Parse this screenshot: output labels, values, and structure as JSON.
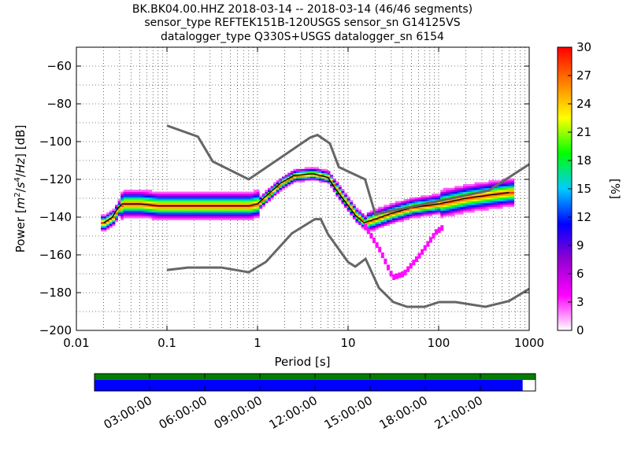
{
  "chart_data": {
    "type": "heatmap",
    "title_lines": [
      "BK.BK04.00.HHZ   2018-03-14 -- 2018-03-14  (46/46 segments)",
      "sensor_type REFTEK151B-120USGS sensor_sn G14125VS",
      "datalogger_type Q330S+USGS datalogger_sn 6154"
    ],
    "xlabel": "Period [s]",
    "ylabel": "Power [m²/s⁴/Hz] [dB]",
    "ylabel_parts": {
      "pre": "Power [",
      "m": "m",
      "two": "2",
      "sep1": "/",
      "s": "s",
      "four": "4",
      "sep2": "/",
      "hz": "Hz",
      "post": "] [dB]"
    },
    "x_scale": "log",
    "xlim": [
      0.01,
      1000
    ],
    "ylim": [
      -200,
      -50
    ],
    "x_ticks": [
      {
        "value": 0.01,
        "label": "0.01"
      },
      {
        "value": 0.1,
        "label": "0.1"
      },
      {
        "value": 1,
        "label": "1"
      },
      {
        "value": 10,
        "label": "10"
      },
      {
        "value": 100,
        "label": "100"
      },
      {
        "value": 1000,
        "label": "1000"
      }
    ],
    "y_ticks": [
      {
        "value": -60,
        "label": "−60"
      },
      {
        "value": -80,
        "label": "−80"
      },
      {
        "value": -100,
        "label": "−100"
      },
      {
        "value": -120,
        "label": "−120"
      },
      {
        "value": -140,
        "label": "−140"
      },
      {
        "value": -160,
        "label": "−160"
      },
      {
        "value": -180,
        "label": "−180"
      },
      {
        "value": -200,
        "label": "−200"
      }
    ],
    "grid": "dotted",
    "grid_periods": [
      0.02,
      0.03,
      0.04,
      0.05,
      0.06,
      0.07,
      0.08,
      0.09,
      0.1,
      0.2,
      0.3,
      0.4,
      0.5,
      0.6,
      0.7,
      0.8,
      0.9,
      1,
      2,
      3,
      4,
      5,
      6,
      7,
      8,
      9,
      10,
      20,
      30,
      40,
      50,
      60,
      70,
      80,
      90,
      100,
      200,
      300,
      400,
      500,
      600,
      700,
      800,
      900
    ],
    "colorbar": {
      "label": "[%]",
      "range": [
        0,
        30
      ],
      "ticks": [
        {
          "value": 0,
          "label": "0"
        },
        {
          "value": 3,
          "label": "3"
        },
        {
          "value": 6,
          "label": "6"
        },
        {
          "value": 9,
          "label": "9"
        },
        {
          "value": 12,
          "label": "12"
        },
        {
          "value": 15,
          "label": "15"
        },
        {
          "value": 18,
          "label": "18"
        },
        {
          "value": 21,
          "label": "21"
        },
        {
          "value": 24,
          "label": "24"
        },
        {
          "value": 27,
          "label": "27"
        },
        {
          "value": 30,
          "label": "30"
        }
      ],
      "colors": [
        "#ffffff",
        "#ff00ff",
        "#9400d3",
        "#0000ff",
        "#00ccff",
        "#00ff00",
        "#ffff00",
        "#ff7f00",
        "#ff0000"
      ]
    },
    "nhnm": [
      [
        0.1,
        -91.5
      ],
      [
        0.22,
        -97.4
      ],
      [
        0.32,
        -110.5
      ],
      [
        0.8,
        -120
      ],
      [
        3.8,
        -97.9
      ],
      [
        4.6,
        -96.5
      ],
      [
        6.3,
        -101
      ],
      [
        7.9,
        -113.5
      ],
      [
        15.4,
        -120
      ],
      [
        20,
        -138.5
      ],
      [
        354.8,
        -126
      ],
      [
        1000,
        -112
      ]
    ],
    "nlnm": [
      [
        0.1,
        -168
      ],
      [
        0.17,
        -166.7
      ],
      [
        0.4,
        -166.7
      ],
      [
        0.8,
        -169.2
      ],
      [
        1.24,
        -163.7
      ],
      [
        2.4,
        -148.6
      ],
      [
        4.3,
        -141.1
      ],
      [
        5,
        -141.1
      ],
      [
        6,
        -149
      ],
      [
        10,
        -163.8
      ],
      [
        12,
        -166.2
      ],
      [
        15.6,
        -162.1
      ],
      [
        21.9,
        -177.5
      ],
      [
        31.6,
        -185
      ],
      [
        45,
        -187.5
      ],
      [
        70,
        -187.5
      ],
      [
        101,
        -185
      ],
      [
        154,
        -185
      ],
      [
        328,
        -187.5
      ],
      [
        600,
        -184.4
      ],
      [
        1000,
        -178
      ]
    ],
    "mode": [
      [
        0.02,
        -143
      ],
      [
        0.025,
        -140
      ],
      [
        0.028,
        -136
      ],
      [
        0.032,
        -133
      ],
      [
        0.05,
        -133
      ],
      [
        0.08,
        -134
      ],
      [
        0.15,
        -134
      ],
      [
        0.3,
        -134
      ],
      [
        0.5,
        -134
      ],
      [
        0.8,
        -134
      ],
      [
        1.0,
        -133
      ],
      [
        1.3,
        -128
      ],
      [
        1.8,
        -122
      ],
      [
        2.5,
        -118
      ],
      [
        4,
        -117
      ],
      [
        5,
        -118
      ],
      [
        6,
        -119
      ],
      [
        7,
        -124
      ],
      [
        9,
        -131
      ],
      [
        12,
        -139
      ],
      [
        15,
        -143
      ],
      [
        20,
        -141
      ],
      [
        30,
        -138
      ],
      [
        50,
        -135
      ],
      [
        100,
        -133
      ],
      [
        200,
        -130
      ],
      [
        400,
        -128
      ],
      [
        600,
        -127
      ]
    ],
    "timeline": {
      "ticks": [
        "03:00:00",
        "06:00:00",
        "09:00:00",
        "12:00:00",
        "15:00:00",
        "18:00:00",
        "21:00:00"
      ],
      "tick_hours": [
        3,
        6,
        9,
        12,
        15,
        18,
        21
      ],
      "span_hours": 24,
      "available_until_hours": 23.3,
      "green_color": "#008000",
      "blue_color": "#0000ff"
    }
  }
}
